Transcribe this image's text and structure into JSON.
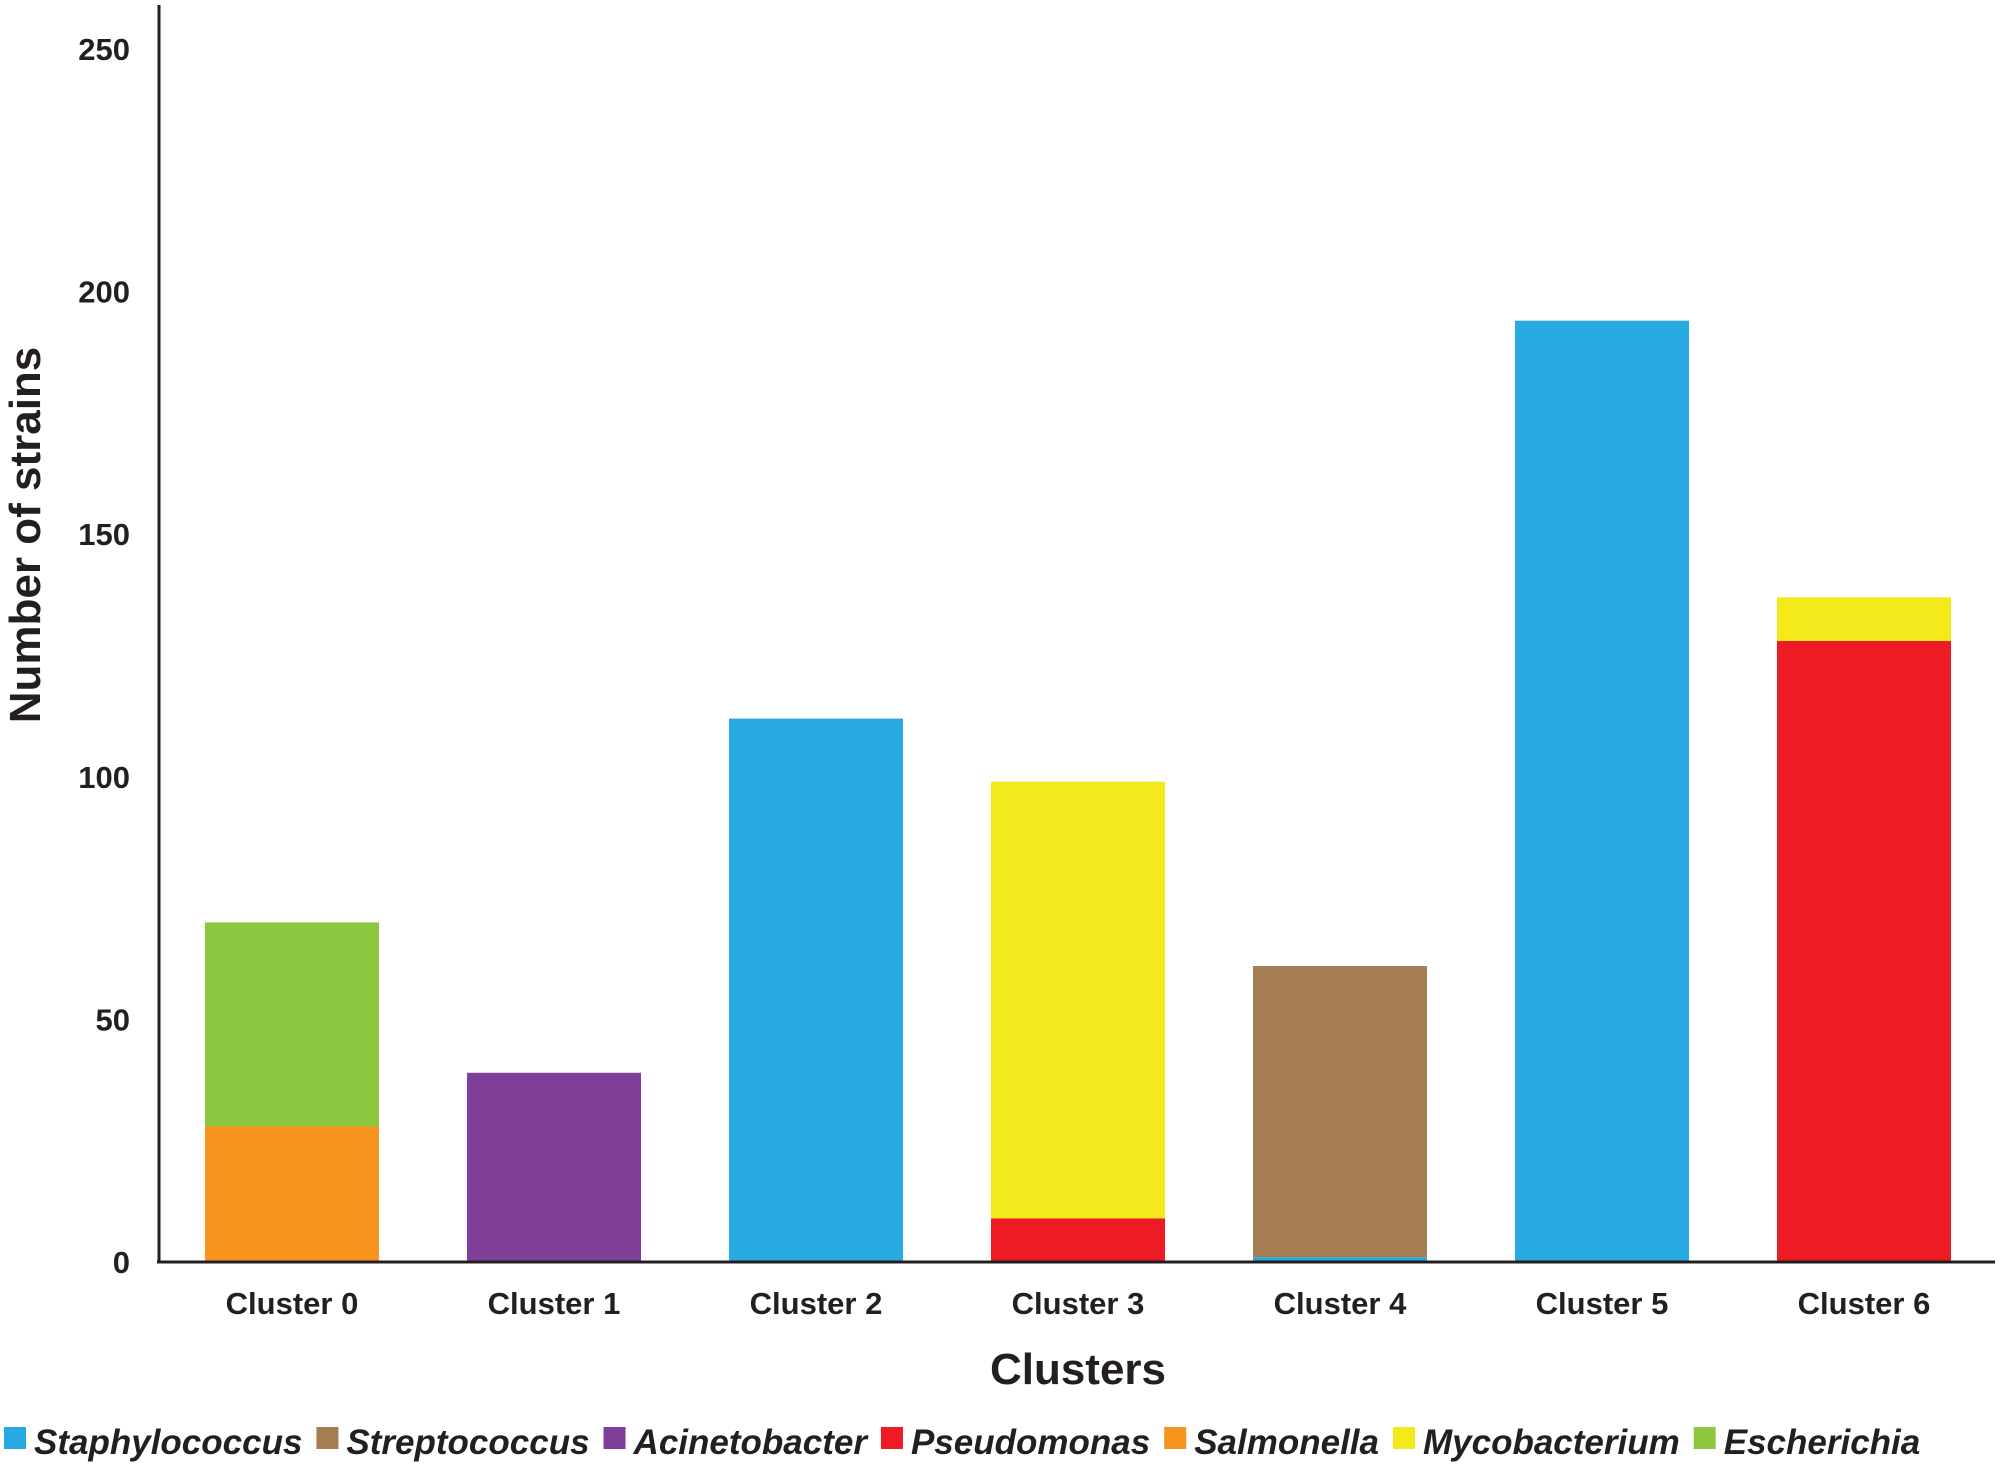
{
  "chart_data": {
    "type": "bar",
    "stacked": true,
    "categories": [
      "Cluster 0",
      "Cluster 1",
      "Cluster 2",
      "Cluster 3",
      "Cluster 4",
      "Cluster 5",
      "Cluster 6"
    ],
    "series": [
      {
        "name": "Staphylococcus",
        "color": "#29a9e1",
        "values": [
          0,
          0,
          112,
          0,
          1,
          194,
          0
        ]
      },
      {
        "name": "Streptococcus",
        "color": "#a67c52",
        "values": [
          0,
          0,
          0,
          0,
          60,
          0,
          0
        ]
      },
      {
        "name": "Acinetobacter",
        "color": "#7f3f98",
        "values": [
          0,
          39,
          0,
          0,
          0,
          0,
          0
        ]
      },
      {
        "name": "Pseudomonas",
        "color": "#ed1c24",
        "values": [
          0,
          0,
          0,
          9,
          0,
          0,
          128
        ]
      },
      {
        "name": "Salmonella",
        "color": "#f7941d",
        "values": [
          28,
          0,
          0,
          0,
          0,
          0,
          0
        ]
      },
      {
        "name": "Mycobacterium",
        "color": "#f4e91b",
        "values": [
          0,
          0,
          0,
          90,
          0,
          0,
          9
        ]
      },
      {
        "name": "Escherichia",
        "color": "#8dc63f",
        "values": [
          42,
          0,
          0,
          0,
          0,
          0,
          0
        ]
      }
    ],
    "xlabel": "Clusters",
    "ylabel": "Number of strains",
    "ylim": [
      0,
      250
    ],
    "yticks": [
      0,
      50,
      100,
      150,
      200,
      250
    ],
    "grid": false,
    "legend": "bottom"
  }
}
